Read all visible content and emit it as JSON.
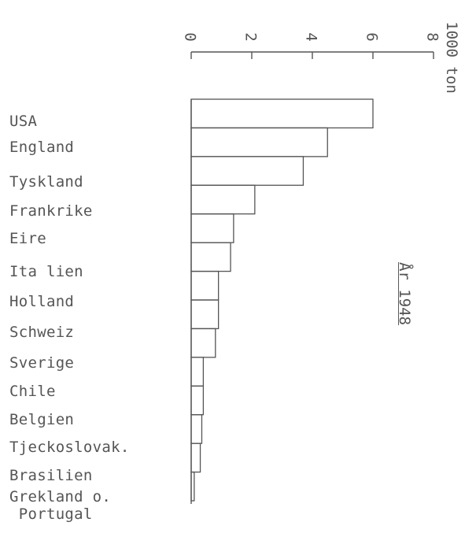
{
  "chart_data": {
    "type": "bar",
    "orientation": "horizontal",
    "categories": [
      "USA",
      "England",
      "Tyskland",
      "Frankrike",
      "Eire",
      "Ita lien",
      "Holland",
      "Schweiz",
      "Sverige",
      "Chile",
      "Belgien",
      "Tjeckoslovak.",
      "Brasilien",
      "Grekland o.\n Portugal"
    ],
    "values": [
      6.0,
      4.5,
      3.7,
      2.1,
      1.4,
      1.3,
      0.9,
      0.9,
      0.8,
      0.4,
      0.4,
      0.35,
      0.3,
      0.1
    ],
    "axis_label": "1000 ton",
    "tick_labels": [
      "0",
      "2",
      "4",
      "6",
      "8"
    ],
    "xlim": [
      0,
      8
    ],
    "annotation": "År 1948",
    "grid": false,
    "legend": "none",
    "colors": {
      "bar_stroke": "#555555",
      "text": "#555555",
      "background": "#ffffff"
    }
  }
}
